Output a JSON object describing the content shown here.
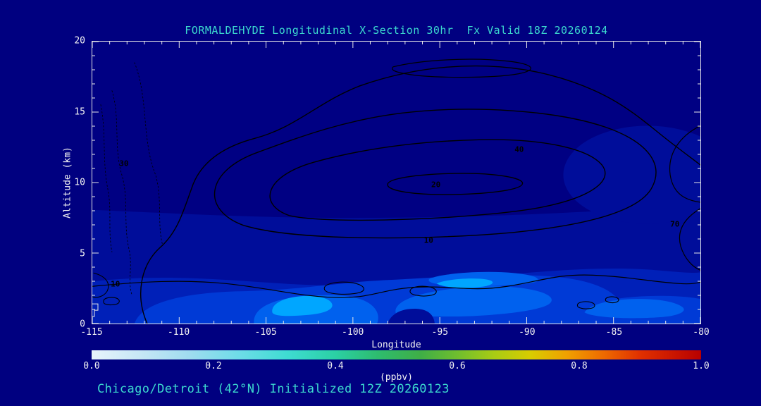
{
  "page": {
    "background_color": "#000080",
    "accent_text_color": "#3CD9CE",
    "axis_text_color": "#F2F2F2",
    "frame_color": "#E8E8E8",
    "contour_line_color": "#000000"
  },
  "chart_data": {
    "type": "heatmap",
    "title": "FORMALDEHYDE Longitudinal X-Section 30hr  Fx Valid 18Z 20260124",
    "caption": "Chicago/Detroit (42°N) Initialized 12Z 20260123",
    "xlabel": "Longitude",
    "ylabel": "Altitude (km)",
    "xlim": [
      -115,
      -80
    ],
    "ylim": [
      0,
      20
    ],
    "x_ticks": [
      -115,
      -110,
      -105,
      -100,
      -95,
      -90,
      -85,
      -80
    ],
    "y_ticks": [
      0,
      5,
      10,
      15,
      20
    ],
    "minor_tick_interval": 1,
    "grid": false,
    "colorbar": {
      "label": "(ppbv)",
      "min": 0.0,
      "max": 1.0,
      "tick_labels": [
        "0.0",
        "0.2",
        "0.4",
        "0.6",
        "0.8",
        "1.0"
      ],
      "gradient": [
        {
          "pos": 0,
          "color": "#E8F4FB"
        },
        {
          "pos": 8,
          "color": "#C6E7F5"
        },
        {
          "pos": 16,
          "color": "#9FDCEF"
        },
        {
          "pos": 24,
          "color": "#6FDCE8"
        },
        {
          "pos": 32,
          "color": "#3FDCD2"
        },
        {
          "pos": 40,
          "color": "#2BD0A4"
        },
        {
          "pos": 47,
          "color": "#2EBC6E"
        },
        {
          "pos": 54,
          "color": "#3FAE46"
        },
        {
          "pos": 60,
          "color": "#6FBE2E"
        },
        {
          "pos": 66,
          "color": "#A8CC14"
        },
        {
          "pos": 72,
          "color": "#D8CC00"
        },
        {
          "pos": 78,
          "color": "#F0A000"
        },
        {
          "pos": 84,
          "color": "#EE6A00"
        },
        {
          "pos": 90,
          "color": "#E03000"
        },
        {
          "pos": 100,
          "color": "#B80000"
        }
      ]
    },
    "fill_shades": [
      "#000083",
      "#000D9A",
      "#0020B8",
      "#003AD6",
      "#0061EE",
      "#00A6FF"
    ],
    "fill_note": "shaded formaldehyde fill values in view span roughly 0.0-0.35 ppbv (dark navy aloft to bright blue maxima below ~4 km)",
    "line_contour_levels_labeled": [
      10,
      20,
      30,
      40,
      70
    ],
    "line_contour_labels": [
      {
        "text": "40",
        "x_pct": 70.2,
        "y_pct": 38.3
      },
      {
        "text": "20",
        "x_pct": 56.5,
        "y_pct": 50.7
      },
      {
        "text": "10",
        "x_pct": 55.3,
        "y_pct": 70.4
      },
      {
        "text": "70",
        "x_pct": 95.8,
        "y_pct": 64.7
      },
      {
        "text": "30",
        "x_pct": 5.2,
        "y_pct": 43.3
      },
      {
        "text": "10",
        "x_pct": 3.8,
        "y_pct": 86.1
      }
    ],
    "field_estimate": {
      "units": "ppbv",
      "longitudes": [
        -115,
        -110,
        -105,
        -100,
        -95,
        -90,
        -85,
        -80
      ],
      "altitudes_km": [
        0,
        2,
        5,
        10,
        15,
        20
      ],
      "values": [
        [
          0.1,
          0.15,
          0.3,
          0.22,
          0.25,
          0.2,
          0.16,
          0.12
        ],
        [
          0.08,
          0.12,
          0.26,
          0.2,
          0.22,
          0.16,
          0.12,
          0.1
        ],
        [
          0.05,
          0.06,
          0.09,
          0.1,
          0.11,
          0.09,
          0.06,
          0.05
        ],
        [
          0.03,
          0.04,
          0.05,
          0.05,
          0.05,
          0.05,
          0.04,
          0.03
        ],
        [
          0.02,
          0.02,
          0.03,
          0.03,
          0.03,
          0.03,
          0.02,
          0.02
        ],
        [
          0.01,
          0.01,
          0.02,
          0.02,
          0.02,
          0.02,
          0.01,
          0.01
        ]
      ]
    }
  }
}
